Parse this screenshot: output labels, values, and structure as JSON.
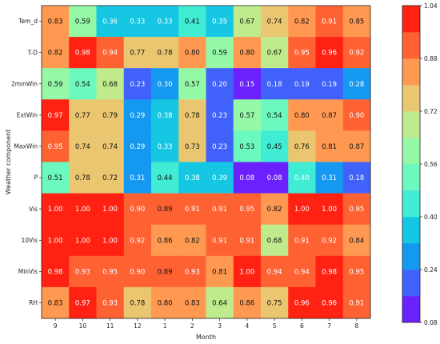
{
  "chart_data": {
    "type": "heatmap",
    "xlabel": "Month",
    "ylabel": "Weather component",
    "x_categories": [
      "9",
      "10",
      "11",
      "12",
      "1",
      "2",
      "3",
      "4",
      "5",
      "6",
      "7",
      "8"
    ],
    "y_categories": [
      "Tem_d",
      "T-D",
      "2minWin",
      "ExtWin",
      "MaxWin",
      "P",
      "Vis",
      "10Vis",
      "MinVis",
      "RH"
    ],
    "values": [
      [
        0.83,
        0.59,
        0.36,
        0.33,
        0.33,
        0.41,
        0.35,
        0.67,
        0.74,
        0.82,
        0.91,
        0.85
      ],
      [
        0.82,
        0.98,
        0.94,
        0.77,
        0.78,
        0.8,
        0.59,
        0.8,
        0.67,
        0.95,
        0.96,
        0.92
      ],
      [
        0.59,
        0.54,
        0.68,
        0.23,
        0.3,
        0.57,
        0.2,
        0.15,
        0.18,
        0.19,
        0.19,
        0.28
      ],
      [
        0.97,
        0.77,
        0.79,
        0.29,
        0.38,
        0.78,
        0.23,
        0.57,
        0.54,
        0.8,
        0.87,
        0.9
      ],
      [
        0.95,
        0.74,
        0.74,
        0.29,
        0.33,
        0.73,
        0.23,
        0.53,
        0.45,
        0.76,
        0.81,
        0.87
      ],
      [
        0.51,
        0.78,
        0.72,
        0.31,
        0.44,
        0.38,
        0.39,
        0.08,
        0.08,
        0.4,
        0.31,
        0.18
      ],
      [
        1.0,
        1.0,
        1.0,
        0.9,
        0.89,
        0.91,
        0.91,
        0.95,
        0.82,
        1.0,
        1.0,
        0.95
      ],
      [
        1.0,
        1.0,
        1.0,
        0.92,
        0.86,
        0.82,
        0.91,
        0.91,
        0.68,
        0.91,
        0.92,
        0.84
      ],
      [
        0.98,
        0.93,
        0.95,
        0.9,
        0.89,
        0.93,
        0.81,
        1.0,
        0.94,
        0.94,
        0.98,
        0.95
      ],
      [
        0.83,
        0.97,
        0.93,
        0.78,
        0.8,
        0.83,
        0.64,
        0.86,
        0.75,
        0.96,
        0.96,
        0.91
      ]
    ],
    "value_labels": [
      [
        "0.83",
        "0.59",
        "0.36",
        "0.33",
        "0.33",
        "0.41",
        "0.35",
        "0.67",
        "0.74",
        "0.82",
        "0.91",
        "0.85"
      ],
      [
        "0.82",
        "0.98",
        "0.94",
        "0.77",
        "0.78",
        "0.80",
        "0.59",
        "0.80",
        "0.67",
        "0.95",
        "0.96",
        "0.92"
      ],
      [
        "0.59",
        "0.54",
        "0.68",
        "0.23",
        "0.30",
        "0.57",
        "0.20",
        "0.15",
        "0.18",
        "0.19",
        "0.19",
        "0.28"
      ],
      [
        "0.97",
        "0.77",
        "0.79",
        "0.29",
        "0.38",
        "0.78",
        "0.23",
        "0.57",
        "0.54",
        "0.80",
        "0.87",
        "0.90"
      ],
      [
        "0.95",
        "0.74",
        "0.74",
        "0.29",
        "0.33",
        "0.73",
        "0.23",
        "0.53",
        "0.45",
        "0.76",
        "0.81",
        "0.87"
      ],
      [
        "0.51",
        "0.78",
        "0.72",
        "0.31",
        "0.44",
        "0.38",
        "0.39",
        "0.08",
        "0.08",
        "0.40",
        "0.31",
        "0.18"
      ],
      [
        "1.00",
        "1.00",
        "1.00",
        "0.90",
        "0.89",
        "0.91",
        "0.91",
        "0.95",
        "0.82",
        "1.00",
        "1.00",
        "0.95"
      ],
      [
        "1.00",
        "1.00",
        "1.00",
        "0.92",
        "0.86",
        "0.82",
        "0.91",
        "0.91",
        "0.68",
        "0.91",
        "0.92",
        "0.84"
      ],
      [
        "0.98",
        "0.93",
        "0.95",
        "0.90",
        "0.89",
        "0.93",
        "0.81",
        "1.00",
        "0.94",
        "0.94",
        "0.98",
        "0.95"
      ],
      [
        "0.83",
        "0.97",
        "0.93",
        "0.78",
        "0.80",
        "0.83",
        "0.64",
        "0.86",
        "0.75",
        "0.96",
        "0.96",
        "0.91"
      ]
    ],
    "colorbar": {
      "min": 0.08,
      "max": 1.04,
      "ticks": [
        0.08,
        0.24,
        0.4,
        0.56,
        0.72,
        0.88,
        1.04
      ],
      "tick_labels": [
        "0.08",
        "0.24",
        "0.40",
        "0.56",
        "0.72",
        "0.88",
        "1.04"
      ],
      "colormap": "rainbow",
      "levels": 12
    },
    "colormap_stops": [
      "#8000ff",
      "#4062fa",
      "#00b4eb",
      "#40ecd4",
      "#80ffb4",
      "#c0eb8d",
      "#ffb462",
      "#ff6232",
      "#ff0000"
    ]
  }
}
